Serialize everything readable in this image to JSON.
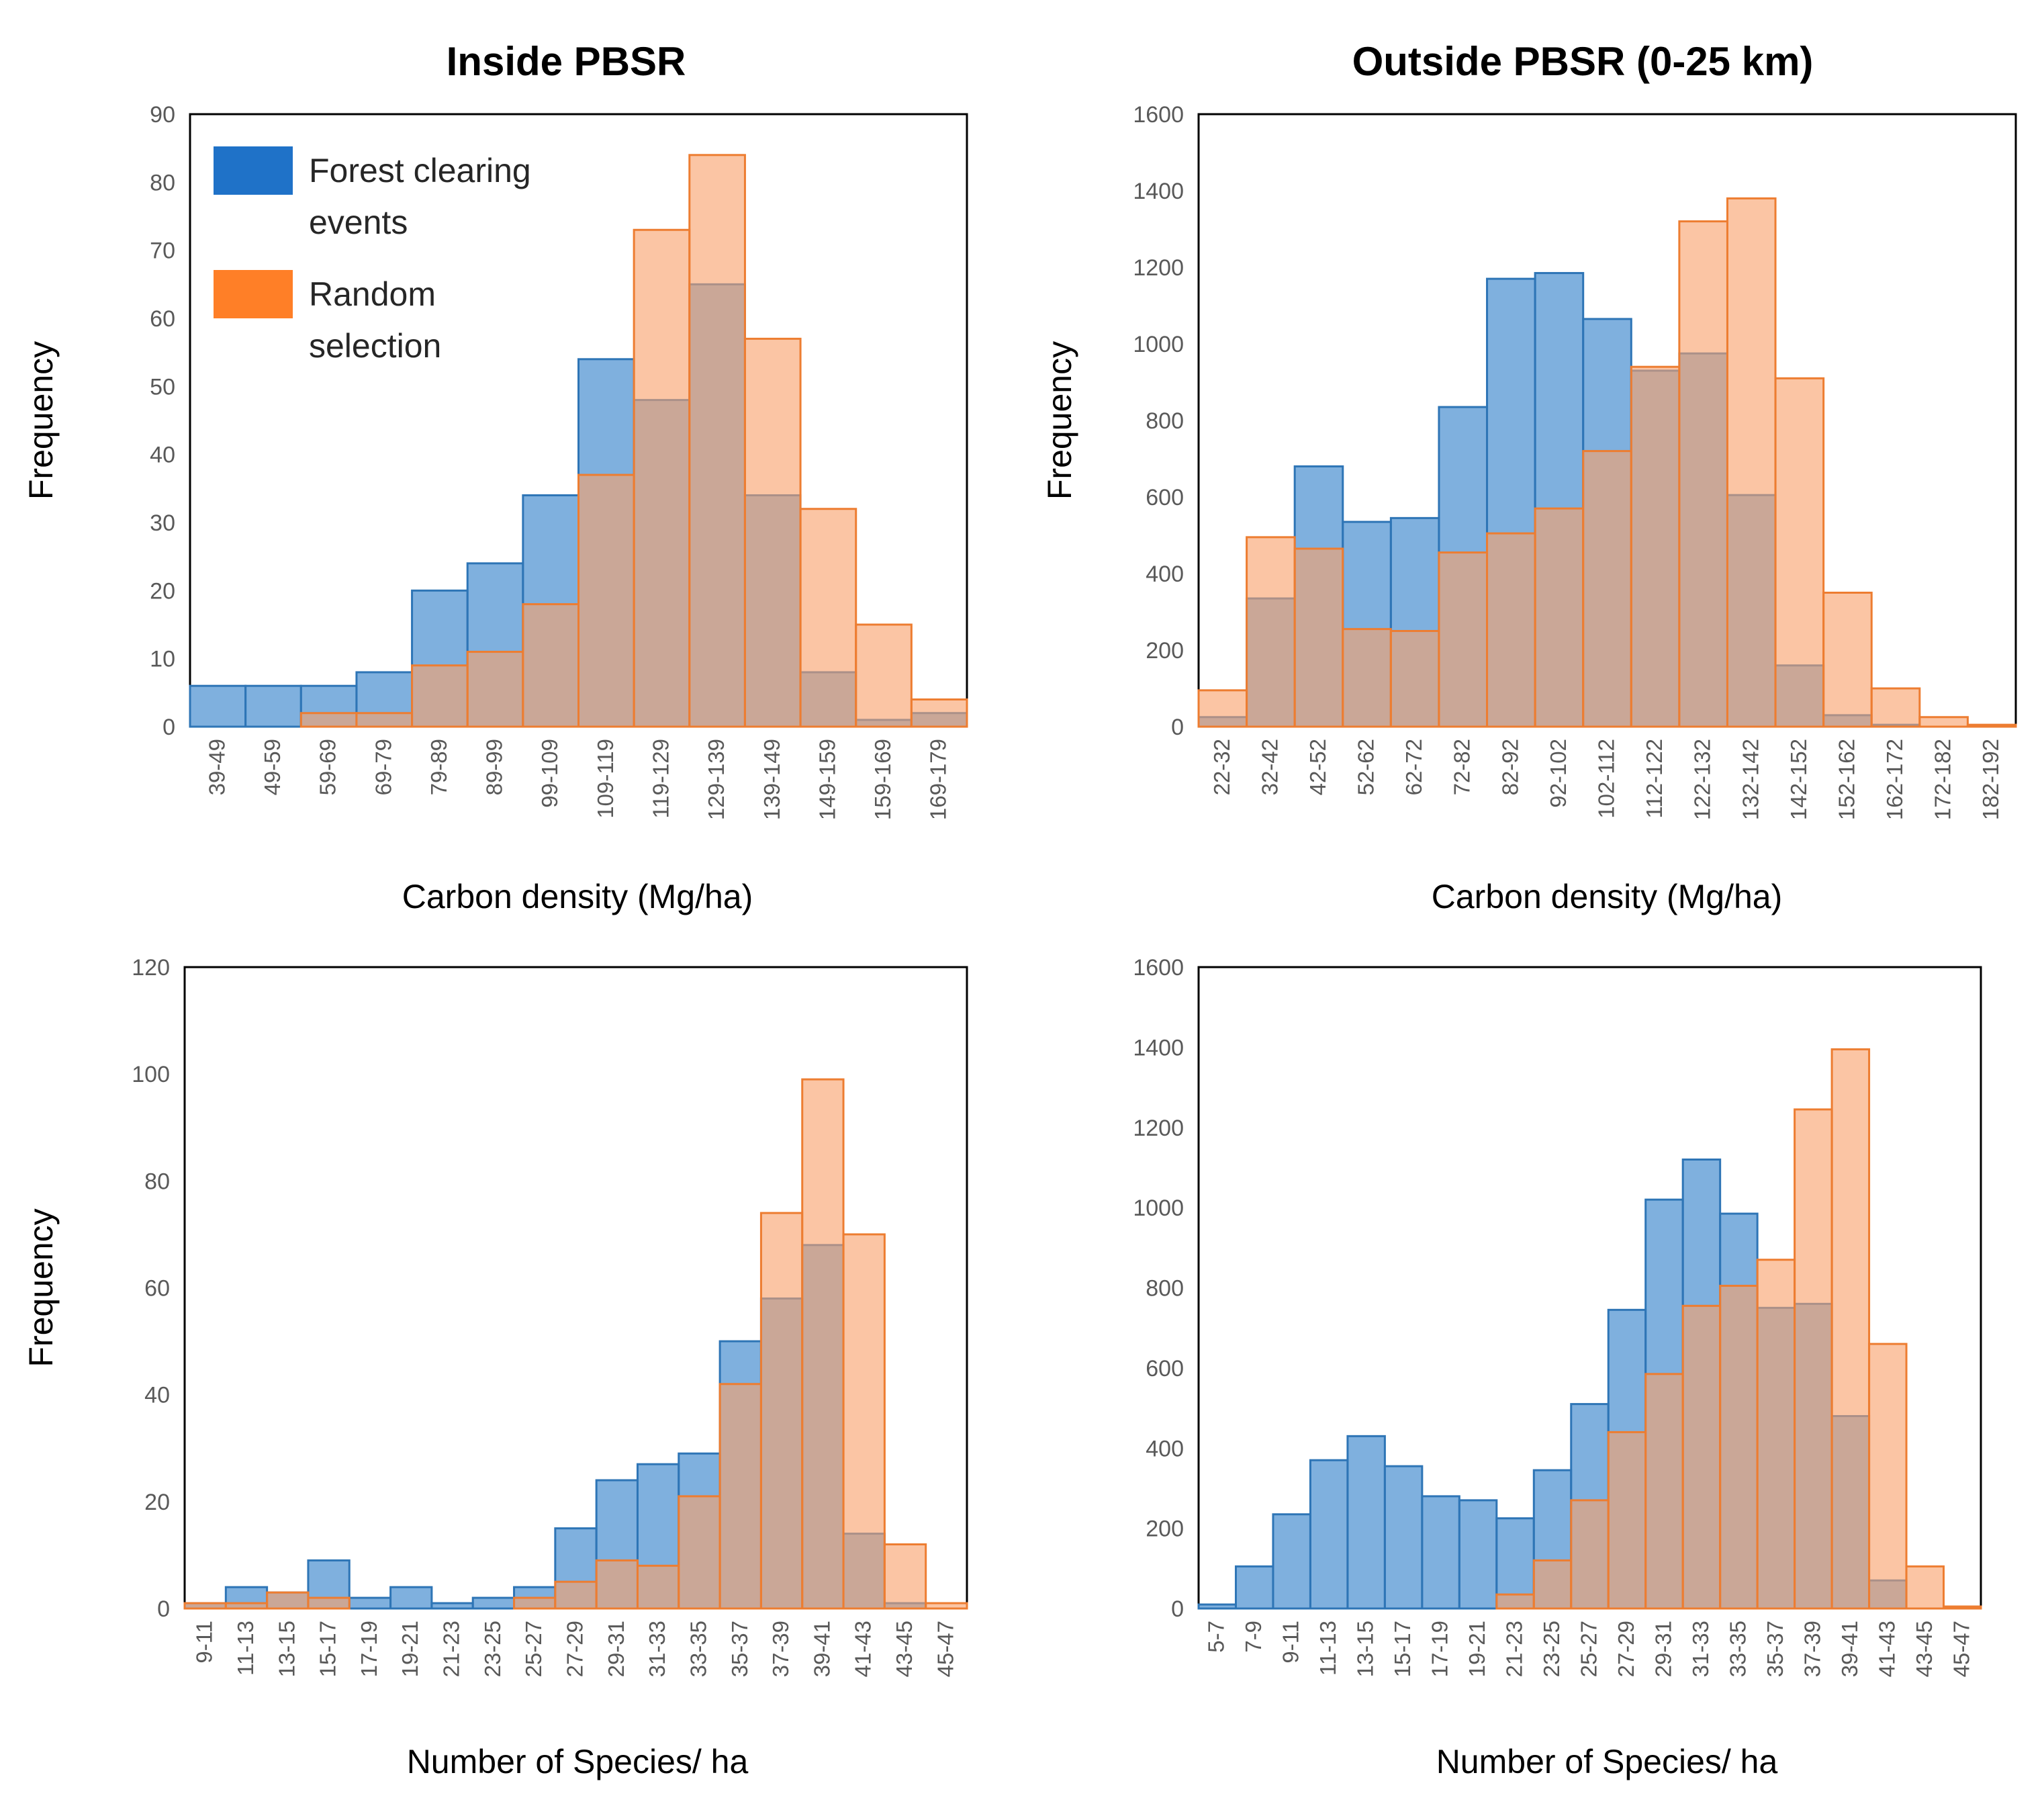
{
  "figure": {
    "titles": {
      "left": "Inside PBSR",
      "right": "Outside PBSR (0-25 km)"
    },
    "legend": {
      "forest_label_line1": "Forest  clearing",
      "forest_label_line2": "events",
      "random_label_line1": "Random",
      "random_label_line2": "selection"
    },
    "colors": {
      "forest_fill": "#5b9ad5",
      "forest_stroke": "#2e75b6",
      "random_fill": "#f8a26c",
      "random_stroke": "#ed7d31",
      "legend_forest": "#1f72c8",
      "legend_random": "#ff7f27"
    }
  },
  "chart_data": [
    {
      "id": "inside-carbon",
      "type": "bar",
      "column": "Inside PBSR",
      "xlabel": "Carbon density (Mg/ha)",
      "ylabel": "Frequency",
      "ylim": [
        0,
        90
      ],
      "ytick_step": 10,
      "categories": [
        "39-49",
        "49-59",
        "59-69",
        "69-79",
        "79-89",
        "89-99",
        "99-109",
        "109-119",
        "119-129",
        "129-139",
        "139-149",
        "149-159",
        "159-169",
        "169-179"
      ],
      "series": [
        {
          "name": "Forest clearing events",
          "values": [
            6,
            6,
            6,
            8,
            20,
            24,
            34,
            54,
            48,
            65,
            34,
            8,
            1,
            2
          ]
        },
        {
          "name": "Random selection",
          "values": [
            0,
            0,
            2,
            2,
            9,
            11,
            18,
            37,
            73,
            84,
            57,
            32,
            15,
            4
          ]
        }
      ]
    },
    {
      "id": "outside-carbon",
      "type": "bar",
      "column": "Outside PBSR (0-25 km)",
      "xlabel": "Carbon density (Mg/ha)",
      "ylabel": "Frequency",
      "ylim": [
        0,
        1600
      ],
      "ytick_step": 200,
      "categories": [
        "22-32",
        "32-42",
        "42-52",
        "52-62",
        "62-72",
        "72-82",
        "82-92",
        "92-102",
        "102-112",
        "112-122",
        "122-132",
        "132-142",
        "142-152",
        "152-162",
        "162-172",
        "172-182",
        "182-192"
      ],
      "series": [
        {
          "name": "Forest clearing events",
          "values": [
            25,
            335,
            680,
            535,
            545,
            835,
            1170,
            1185,
            1065,
            930,
            975,
            605,
            160,
            30,
            5,
            0,
            0
          ]
        },
        {
          "name": "Random selection",
          "values": [
            95,
            495,
            465,
            255,
            250,
            455,
            505,
            570,
            720,
            940,
            1320,
            1380,
            910,
            350,
            100,
            25,
            5
          ]
        }
      ]
    },
    {
      "id": "inside-species",
      "type": "bar",
      "column": "Inside PBSR",
      "xlabel": "Number  of Species/ ha",
      "ylabel": "Frequency",
      "ylim": [
        0,
        120
      ],
      "ytick_step": 20,
      "categories": [
        "9-11",
        "11-13",
        "13-15",
        "15-17",
        "17-19",
        "19-21",
        "21-23",
        "23-25",
        "25-27",
        "27-29",
        "29-31",
        "31-33",
        "33-35",
        "35-37",
        "37-39",
        "39-41",
        "41-43",
        "43-45",
        "45-47"
      ],
      "series": [
        {
          "name": "Forest clearing events",
          "values": [
            1,
            4,
            3,
            9,
            2,
            4,
            1,
            2,
            4,
            15,
            24,
            27,
            29,
            50,
            58,
            68,
            14,
            1,
            0
          ]
        },
        {
          "name": "Random selection",
          "values": [
            1,
            1,
            3,
            2,
            0,
            0,
            0,
            0,
            2,
            5,
            9,
            8,
            21,
            42,
            74,
            99,
            70,
            12,
            1
          ]
        }
      ]
    },
    {
      "id": "outside-species",
      "type": "bar",
      "column": "Outside PBSR (0-25 km)",
      "xlabel": "Number  of Species/ ha",
      "ylabel": "",
      "ylim": [
        0,
        1600
      ],
      "ytick_step": 200,
      "categories": [
        "5-7",
        "7-9",
        "9-11",
        "11-13",
        "13-15",
        "15-17",
        "17-19",
        "19-21",
        "21-23",
        "23-25",
        "25-27",
        "27-29",
        "29-31",
        "31-33",
        "33-35",
        "35-37",
        "37-39",
        "39-41",
        "41-43",
        "43-45",
        "45-47"
      ],
      "series": [
        {
          "name": "Forest clearing events",
          "values": [
            10,
            105,
            235,
            370,
            430,
            355,
            280,
            270,
            225,
            345,
            510,
            745,
            1020,
            1120,
            985,
            750,
            760,
            480,
            70,
            0,
            0
          ]
        },
        {
          "name": "Random selection",
          "values": [
            0,
            0,
            0,
            0,
            0,
            0,
            0,
            0,
            35,
            120,
            270,
            440,
            585,
            755,
            805,
            870,
            1245,
            1395,
            660,
            105,
            5
          ]
        }
      ]
    }
  ]
}
